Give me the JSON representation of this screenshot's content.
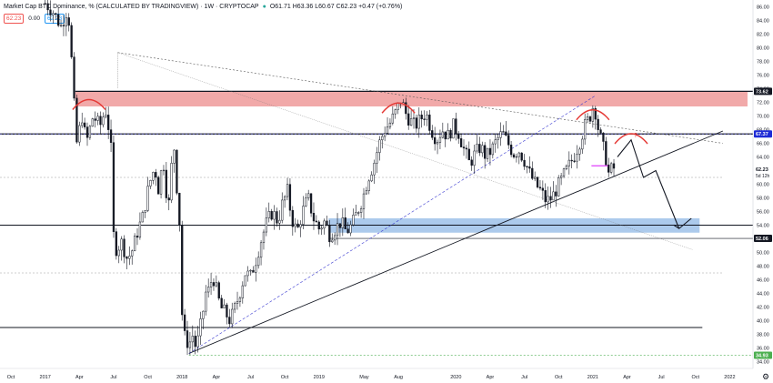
{
  "header": {
    "title": "Market Cap BTC Dominance, % (CALCULATED BY TRADINGVIEW) · 1W · CRYPTOCAP",
    "ohlc": "O61.71 H63.36 L60.67 C62.23 +0.47 (+0.76%)",
    "val_left": "62.23",
    "val_zero": "0.00",
    "val_right": "62.23"
  },
  "colors": {
    "up": "#26a69a",
    "down": "#131722",
    "candle_fill": "#ffffff",
    "resistance_zone": "#ef9a9a",
    "support_zone": "#90b8e6",
    "blue_badge": "#1e2bd6",
    "price_badge": "#131722"
  },
  "chart_data": {
    "type": "candlestick",
    "timeframe": "1W",
    "symbol": "CRYPTOCAP:BTC.D",
    "ylim": [
      33,
      87
    ],
    "y_ticks": [
      34,
      36,
      38,
      40,
      42,
      44,
      46,
      48,
      50,
      52,
      54,
      56,
      58,
      60,
      62,
      64,
      66,
      68,
      70,
      72,
      74,
      76,
      78,
      80,
      82,
      84,
      86
    ],
    "x_ticks": [
      {
        "label": "Oct",
        "t": 2016.75
      },
      {
        "label": "2017",
        "t": 2017.0
      },
      {
        "label": "Apr",
        "t": 2017.25
      },
      {
        "label": "Jul",
        "t": 2017.5
      },
      {
        "label": "Oct",
        "t": 2017.75
      },
      {
        "label": "2018",
        "t": 2018.0
      },
      {
        "label": "Apr",
        "t": 2018.25
      },
      {
        "label": "Jul",
        "t": 2018.5
      },
      {
        "label": "Oct",
        "t": 2018.75
      },
      {
        "label": "2019",
        "t": 2019.0
      },
      {
        "label": "May",
        "t": 2019.33
      },
      {
        "label": "Aug",
        "t": 2019.58
      },
      {
        "label": "2020",
        "t": 2020.0
      },
      {
        "label": "Apr",
        "t": 2020.25
      },
      {
        "label": "Jul",
        "t": 2020.5
      },
      {
        "label": "Oct",
        "t": 2020.75
      },
      {
        "label": "2021",
        "t": 2021.0
      },
      {
        "label": "Apr",
        "t": 2021.25
      },
      {
        "label": "Jul",
        "t": 2021.5
      },
      {
        "label": "Oct",
        "t": 2021.75
      },
      {
        "label": "2022",
        "t": 2022.0
      }
    ],
    "key_prices": [
      {
        "value": 73.62,
        "label": "73.62",
        "kind": "resistance"
      },
      {
        "value": 67.37,
        "label": "67.37",
        "kind": "level"
      },
      {
        "value": 62.23,
        "label": "62.23",
        "kind": "last"
      },
      {
        "value": 52.06,
        "label": "52.06",
        "kind": "support"
      },
      {
        "value": 34.93,
        "label": "34.93",
        "kind": "green"
      }
    ],
    "countdown_label": "5d 12h",
    "close_path": [
      [
        2017.0,
        86.5
      ],
      [
        2017.05,
        85.5
      ],
      [
        2017.12,
        83.0
      ],
      [
        2017.15,
        85.5
      ],
      [
        2017.18,
        83.5
      ],
      [
        2017.2,
        75.0
      ],
      [
        2017.23,
        66.0
      ],
      [
        2017.27,
        70.0
      ],
      [
        2017.3,
        66.0
      ],
      [
        2017.35,
        70.0
      ],
      [
        2017.4,
        68.5
      ],
      [
        2017.44,
        71.0
      ],
      [
        2017.47,
        67.5
      ],
      [
        2017.49,
        63.0
      ],
      [
        2017.5,
        52.5
      ],
      [
        2017.52,
        50.5
      ],
      [
        2017.56,
        51.5
      ],
      [
        2017.6,
        49.0
      ],
      [
        2017.64,
        50.5
      ],
      [
        2017.68,
        53.5
      ],
      [
        2017.71,
        55.0
      ],
      [
        2017.73,
        57.0
      ],
      [
        2017.76,
        60.0
      ],
      [
        2017.8,
        62.5
      ],
      [
        2017.83,
        59.0
      ],
      [
        2017.86,
        64.0
      ],
      [
        2017.88,
        60.0
      ],
      [
        2017.9,
        56.0
      ],
      [
        2017.92,
        62.0
      ],
      [
        2017.94,
        66.0
      ],
      [
        2017.96,
        60.0
      ],
      [
        2017.98,
        55.0
      ],
      [
        2018.0,
        41.0
      ],
      [
        2018.02,
        37.5
      ],
      [
        2018.05,
        36.5
      ],
      [
        2018.08,
        38.0
      ],
      [
        2018.1,
        36.0
      ],
      [
        2018.12,
        37.5
      ],
      [
        2018.15,
        41.0
      ],
      [
        2018.18,
        45.0
      ],
      [
        2018.2,
        44.0
      ],
      [
        2018.22,
        47.0
      ],
      [
        2018.25,
        44.5
      ],
      [
        2018.28,
        42.0
      ],
      [
        2018.32,
        41.0
      ],
      [
        2018.35,
        40.0
      ],
      [
        2018.38,
        41.5
      ],
      [
        2018.42,
        44.0
      ],
      [
        2018.46,
        47.0
      ],
      [
        2018.5,
        46.5
      ],
      [
        2018.54,
        49.0
      ],
      [
        2018.58,
        52.0
      ],
      [
        2018.62,
        54.5
      ],
      [
        2018.66,
        56.0
      ],
      [
        2018.7,
        54.5
      ],
      [
        2018.73,
        57.0
      ],
      [
        2018.77,
        59.0
      ],
      [
        2018.8,
        55.0
      ],
      [
        2018.84,
        53.0
      ],
      [
        2018.88,
        56.0
      ],
      [
        2018.92,
        58.0
      ],
      [
        2018.96,
        55.0
      ],
      [
        2019.0,
        53.5
      ],
      [
        2019.04,
        54.5
      ],
      [
        2019.08,
        52.5
      ],
      [
        2019.12,
        53.5
      ],
      [
        2019.16,
        54.5
      ],
      [
        2019.2,
        53.0
      ],
      [
        2019.24,
        54.0
      ],
      [
        2019.28,
        56.0
      ],
      [
        2019.32,
        58.0
      ],
      [
        2019.36,
        61.0
      ],
      [
        2019.4,
        63.0
      ],
      [
        2019.44,
        66.0
      ],
      [
        2019.48,
        68.0
      ],
      [
        2019.52,
        69.0
      ],
      [
        2019.56,
        70.5
      ],
      [
        2019.6,
        72.5
      ],
      [
        2019.63,
        70.5
      ],
      [
        2019.66,
        69.5
      ],
      [
        2019.7,
        68.5
      ],
      [
        2019.74,
        69.5
      ],
      [
        2019.78,
        70.5
      ],
      [
        2019.82,
        68.0
      ],
      [
        2019.86,
        66.5
      ],
      [
        2019.9,
        68.0
      ],
      [
        2019.94,
        67.0
      ],
      [
        2019.98,
        68.5
      ],
      [
        2020.02,
        67.5
      ],
      [
        2020.06,
        65.0
      ],
      [
        2020.1,
        63.0
      ],
      [
        2020.14,
        64.5
      ],
      [
        2020.18,
        65.5
      ],
      [
        2020.22,
        64.0
      ],
      [
        2020.26,
        65.0
      ],
      [
        2020.3,
        66.5
      ],
      [
        2020.34,
        67.5
      ],
      [
        2020.38,
        66.0
      ],
      [
        2020.42,
        64.5
      ],
      [
        2020.46,
        65.0
      ],
      [
        2020.5,
        63.5
      ],
      [
        2020.54,
        61.5
      ],
      [
        2020.58,
        60.0
      ],
      [
        2020.62,
        59.0
      ],
      [
        2020.66,
        57.5
      ],
      [
        2020.7,
        58.0
      ],
      [
        2020.74,
        59.5
      ],
      [
        2020.78,
        61.0
      ],
      [
        2020.82,
        62.5
      ],
      [
        2020.86,
        64.0
      ],
      [
        2020.9,
        66.0
      ],
      [
        2020.94,
        68.5
      ],
      [
        2020.98,
        70.0
      ],
      [
        2021.01,
        72.0
      ],
      [
        2021.03,
        69.0
      ],
      [
        2021.06,
        66.5
      ],
      [
        2021.1,
        63.5
      ],
      [
        2021.12,
        61.0
      ],
      [
        2021.14,
        62.5
      ],
      [
        2021.16,
        62.23
      ]
    ],
    "annotations": {
      "head_shoulder_arcs": [
        {
          "t": 2017.32,
          "y": 72.0
        },
        {
          "t": 2019.58,
          "y": 71.5
        },
        {
          "t": 2021.0,
          "y": 70.5
        },
        {
          "t": 2021.28,
          "y": 67.0
        }
      ],
      "question_mark": "?",
      "projection_path": [
        [
          2021.18,
          64.0
        ],
        [
          2021.28,
          66.5
        ],
        [
          2021.37,
          61.0
        ],
        [
          2021.46,
          62.0
        ],
        [
          2021.63,
          53.5
        ],
        [
          2021.72,
          55.0
        ]
      ]
    }
  }
}
